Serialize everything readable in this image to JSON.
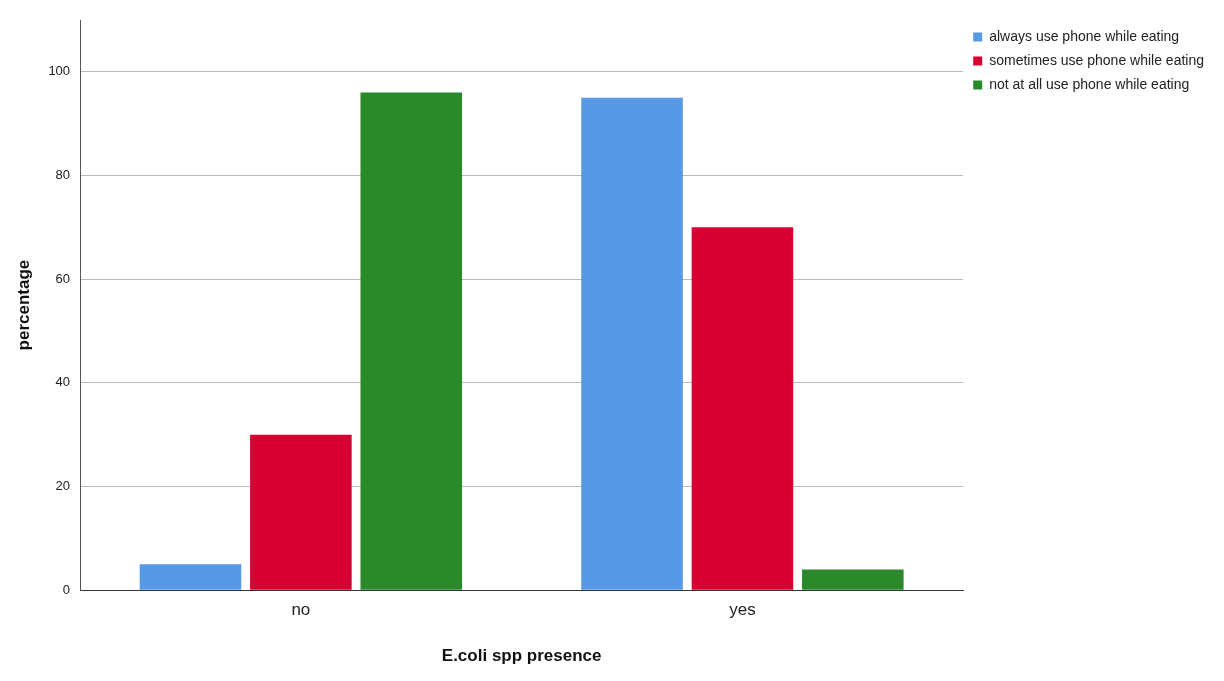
{
  "chart_data": {
    "type": "bar",
    "xlabel": "E.coli spp presence",
    "ylabel": "percentage",
    "categories": [
      "no",
      "yes"
    ],
    "series": [
      {
        "name": "always use phone while eating",
        "color": "#5899e6",
        "values": [
          5,
          95
        ]
      },
      {
        "name": "sometimes use phone while eating",
        "color": "#d60032",
        "values": [
          30,
          70
        ]
      },
      {
        "name": "not at all use phone while eating",
        "color": "#2a8a2b",
        "values": [
          96,
          4
        ]
      }
    ],
    "ylim": [
      0,
      110
    ],
    "yticks": [
      0,
      20,
      40,
      60,
      80,
      100
    ],
    "grid": "y",
    "legend": "top right"
  }
}
